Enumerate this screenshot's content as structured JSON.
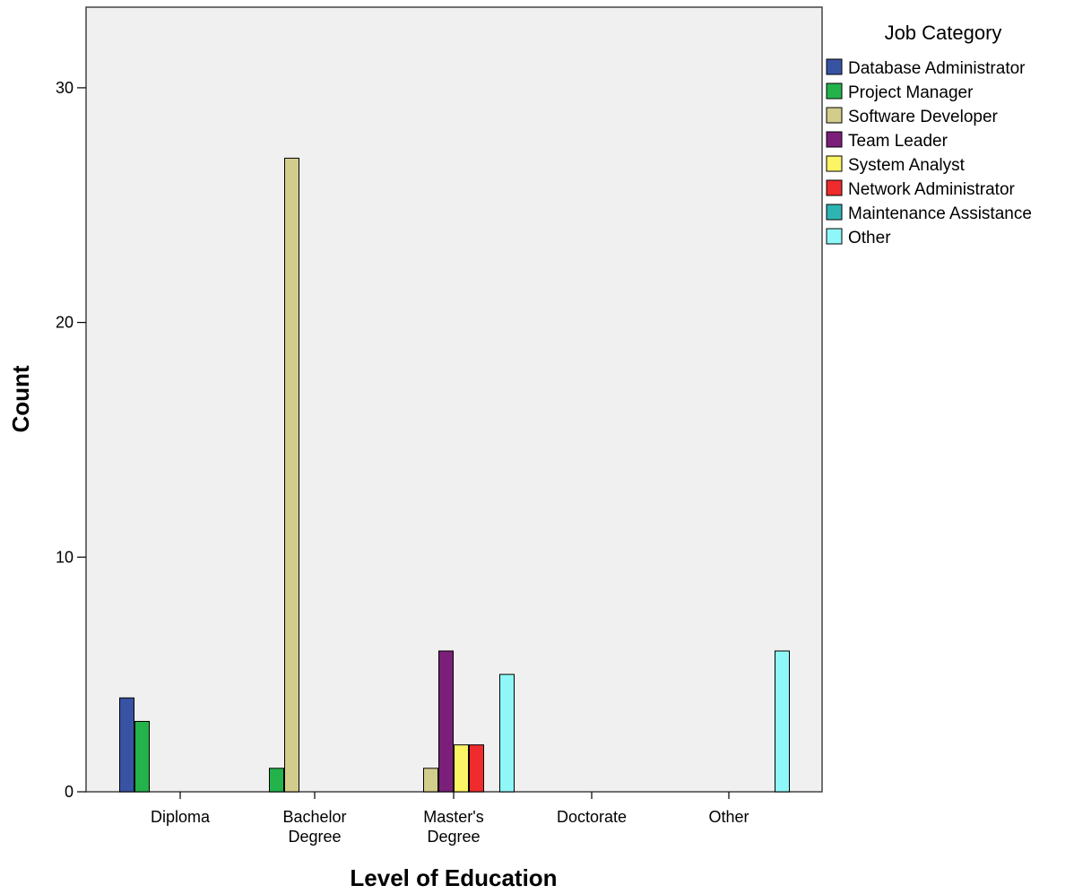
{
  "chart_data": {
    "type": "bar",
    "xlabel": "Level of Education",
    "ylabel": "Count",
    "ylim": [
      0,
      33
    ],
    "y_ticks": [
      0,
      10,
      20,
      30
    ],
    "grid": false,
    "legend_title": "Job Category",
    "legend_position": "right",
    "categories": [
      [
        "Diploma"
      ],
      [
        "Bachelor",
        "Degree"
      ],
      [
        "Master's",
        "Degree"
      ],
      [
        "Doctorate"
      ],
      [
        "Other"
      ]
    ],
    "series": [
      {
        "name": "Database Administrator",
        "color": "#3953a4",
        "values": [
          4,
          0,
          0,
          0,
          0
        ]
      },
      {
        "name": "Project Manager",
        "color": "#24b24b",
        "values": [
          3,
          1,
          0,
          0,
          0
        ]
      },
      {
        "name": "Software Developer",
        "color": "#d3cd8c",
        "values": [
          0,
          27,
          1,
          0,
          0
        ]
      },
      {
        "name": "Team Leader",
        "color": "#7b1f7b",
        "values": [
          0,
          0,
          6,
          0,
          0
        ]
      },
      {
        "name": "System Analyst",
        "color": "#fbf464",
        "values": [
          0,
          0,
          2,
          0,
          0
        ]
      },
      {
        "name": "Network Administrator",
        "color": "#ef2b2d",
        "values": [
          0,
          0,
          2,
          0,
          0
        ]
      },
      {
        "name": "Maintenance Assistance",
        "color": "#2fb4b4",
        "values": [
          0,
          0,
          0,
          0,
          0
        ]
      },
      {
        "name": "Other",
        "color": "#8ff7f7",
        "values": [
          0,
          0,
          5,
          0,
          6
        ]
      }
    ]
  },
  "colors": {
    "plot_background": "#f0f0f0",
    "bar_outline": "#000000"
  }
}
